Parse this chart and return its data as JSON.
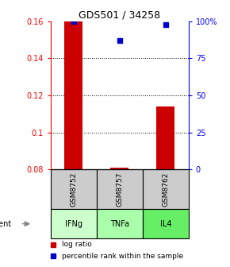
{
  "title": "GDS501 / 34258",
  "samples": [
    "GSM8752",
    "GSM8757",
    "GSM8762"
  ],
  "agents": [
    "IFNg",
    "TNFa",
    "IL4"
  ],
  "x_positions": [
    1,
    2,
    3
  ],
  "log_ratios": [
    0.16,
    0.081,
    0.114
  ],
  "percentile_ranks": [
    100,
    87,
    98
  ],
  "ylim_left": [
    0.08,
    0.16
  ],
  "ylim_right": [
    0,
    100
  ],
  "yticks_left": [
    0.08,
    0.1,
    0.12,
    0.14,
    0.16
  ],
  "yticks_right": [
    0,
    25,
    50,
    75,
    100
  ],
  "ytick_labels_left": [
    "0.08",
    "0.1",
    "0.12",
    "0.14",
    "0.16"
  ],
  "ytick_labels_right": [
    "0",
    "25",
    "50",
    "75",
    "100%"
  ],
  "bar_color": "#cc0000",
  "dot_color": "#0000cc",
  "sample_box_color": "#cccccc",
  "agent_colors": [
    "#ccffcc",
    "#aaffaa",
    "#66ee66"
  ],
  "legend_bar_label": "log ratio",
  "legend_dot_label": "percentile rank within the sample",
  "bar_width": 0.4,
  "bar_baseline": 0.08
}
